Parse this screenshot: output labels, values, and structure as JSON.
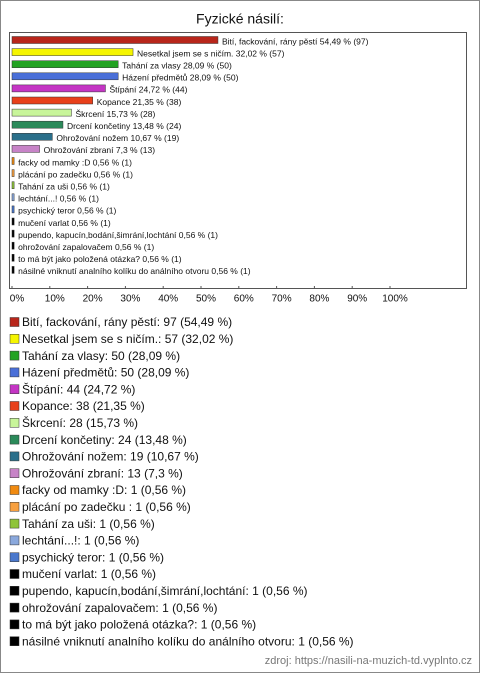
{
  "chart_data": {
    "type": "bar",
    "orientation": "horizontal",
    "title": "Fyzické násilí:",
    "values": [
      54.49,
      32.02,
      28.09,
      28.09,
      24.72,
      21.35,
      15.73,
      13.48,
      10.67,
      7.3,
      0.56,
      0.56,
      0.56,
      0.56,
      0.56,
      0.56,
      0.56,
      0.56,
      0.56,
      0.56
    ],
    "value_labels": [
      "Bití, fackování, rány pěstí 54,49 % (97)",
      "Nesetkal jsem se s ničím. 32,02 % (57)",
      "Tahání za vlasy 28,09 % (50)",
      "Házení předmětů 28,09 % (50)",
      "Štípání 24,72 % (44)",
      "Kopance 21,35 % (38)",
      "Škrcení 15,73 % (28)",
      "Drcení končetiny 13,48 % (24)",
      "Ohrožování nožem 10,67 % (19)",
      "Ohrožování zbraní 7,3 % (13)",
      "facky od mamky :D 0,56 % (1)",
      "plácání po zadečku  0,56 % (1)",
      "Tahání za uši 0,56 % (1)",
      "lechtání...! 0,56 % (1)",
      "psychický teror 0,56 % (1)",
      "mučení varlat 0,56 % (1)",
      "pupendo, kapucín,bodání,šimrání,lochtání 0,56 % (1)",
      "ohrožování zapalovačem 0,56 % (1)",
      "to má být jako položená otázka? 0,56 % (1)",
      "násilné vniknutí analního kolíku do análního otvoru 0,56 % (1)"
    ],
    "legend": [
      "Bití, fackování, rány pěstí: 97 (54,49 %)",
      "Nesetkal jsem se s ničím.: 57 (32,02 %)",
      "Tahání za vlasy: 50 (28,09 %)",
      "Házení předmětů: 50 (28,09 %)",
      "Štípání: 44 (24,72 %)",
      "Kopance: 38 (21,35 %)",
      "Škrcení: 28 (15,73 %)",
      "Drcení končetiny: 24 (13,48 %)",
      "Ohrožování nožem: 19 (10,67 %)",
      "Ohrožování zbraní: 13 (7,3 %)",
      "facky od mamky :D: 1 (0,56 %)",
      "plácání po zadečku : 1 (0,56 %)",
      "Tahání za uši: 1 (0,56 %)",
      "lechtání...!: 1 (0,56 %)",
      "psychický teror: 1 (0,56 %)",
      "mučení varlat: 1 (0,56 %)",
      "pupendo, kapucín,bodání,šimrání,lochtání: 1 (0,56 %)",
      "ohrožování zapalovačem: 1 (0,56 %)",
      "to má být jako položená otázka?: 1 (0,56 %)",
      "násilné vniknutí analního kolíku do análního otvoru: 1 (0,56 %)"
    ],
    "colors": [
      "#b8261b",
      "#f5f500",
      "#23a323",
      "#4a6fd8",
      "#c435c4",
      "#e8401a",
      "#c8f59a",
      "#2b8a5a",
      "#2a6f8a",
      "#c783c7",
      "#f08a10",
      "#f7a040",
      "#8fc43a",
      "#8aa8dc",
      "#4a78cc",
      "#000000",
      "#000000",
      "#000000",
      "#000000",
      "#000000"
    ],
    "xlim": [
      0,
      100
    ],
    "xticks": [
      {
        "value": 0,
        "label": "0%"
      },
      {
        "value": 10,
        "label": "10%"
      },
      {
        "value": 20,
        "label": "20%"
      },
      {
        "value": 30,
        "label": "30%"
      },
      {
        "value": 40,
        "label": "40%"
      },
      {
        "value": 50,
        "label": "50%"
      },
      {
        "value": 60,
        "label": "60%"
      },
      {
        "value": 70,
        "label": "70%"
      },
      {
        "value": 80,
        "label": "80%"
      },
      {
        "value": 90,
        "label": "90%"
      },
      {
        "value": 100,
        "label": "100%"
      }
    ],
    "source": "zdroj: https://nasili-na-muzich-td.vyplnto.cz"
  }
}
